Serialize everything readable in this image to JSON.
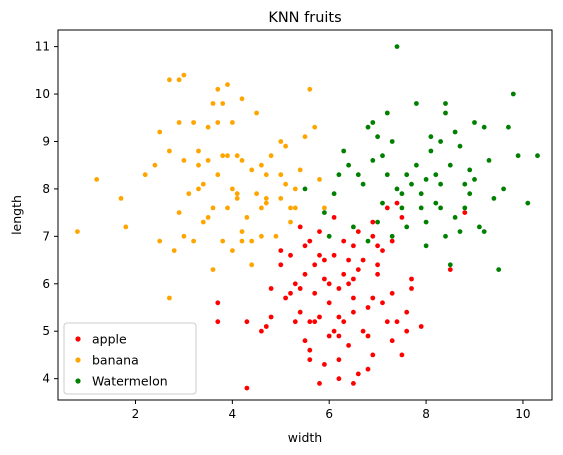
{
  "chart_data": {
    "type": "scatter",
    "title": "KNN fruits",
    "xlabel": "width",
    "ylabel": "length",
    "xlim": [
      0.4,
      10.6
    ],
    "ylim": [
      3.55,
      11.35
    ],
    "xticks": [
      2,
      4,
      6,
      8,
      10
    ],
    "yticks": [
      4,
      5,
      6,
      7,
      8,
      9,
      10,
      11
    ],
    "legend_position": "lower-left",
    "grid": false,
    "series": [
      {
        "name": "apple",
        "color": "#ff0000",
        "points": [
          [
            4.3,
            3.8
          ],
          [
            4.6,
            5.0
          ],
          [
            4.7,
            5.1
          ],
          [
            4.8,
            5.9
          ],
          [
            5.0,
            6.4
          ],
          [
            5.1,
            5.7
          ],
          [
            5.2,
            6.6
          ],
          [
            5.4,
            5.4
          ],
          [
            5.4,
            5.9
          ],
          [
            5.5,
            4.8
          ],
          [
            5.6,
            5.2
          ],
          [
            5.7,
            5.2
          ],
          [
            5.6,
            6.9
          ],
          [
            5.5,
            6.2
          ],
          [
            5.5,
            6.8
          ],
          [
            5.9,
            6.1
          ],
          [
            5.9,
            6.5
          ],
          [
            5.7,
            5.8
          ],
          [
            5.8,
            6.6
          ],
          [
            6.1,
            5.0
          ],
          [
            6.2,
            5.3
          ],
          [
            6.0,
            5.6
          ],
          [
            6.3,
            6.2
          ],
          [
            6.3,
            6.9
          ],
          [
            6.1,
            7.4
          ],
          [
            6.5,
            6.8
          ],
          [
            6.5,
            5.4
          ],
          [
            6.4,
            4.7
          ],
          [
            6.6,
            4.1
          ],
          [
            6.5,
            3.9
          ],
          [
            6.8,
            4.2
          ],
          [
            6.8,
            4.9
          ],
          [
            6.8,
            5.5
          ],
          [
            7.0,
            6.4
          ],
          [
            7.0,
            6.8
          ],
          [
            7.2,
            5.2
          ],
          [
            7.3,
            5.8
          ],
          [
            7.4,
            5.2
          ],
          [
            7.5,
            4.5
          ],
          [
            7.6,
            5.4
          ],
          [
            7.7,
            6.1
          ],
          [
            7.7,
            5.9
          ],
          [
            6.9,
            7.3
          ],
          [
            7.2,
            7.6
          ],
          [
            7.5,
            7.4
          ],
          [
            7.3,
            6.9
          ],
          [
            6.7,
            5.0
          ],
          [
            6.2,
            4.4
          ],
          [
            6.0,
            4.9
          ],
          [
            6.2,
            5.9
          ],
          [
            6.5,
            6.1
          ],
          [
            6.1,
            6.6
          ],
          [
            5.8,
            5.3
          ],
          [
            5.6,
            4.4
          ],
          [
            5.8,
            3.9
          ],
          [
            5.3,
            6.0
          ],
          [
            4.8,
            5.3
          ],
          [
            5.9,
            4.3
          ],
          [
            7.1,
            5.6
          ],
          [
            8.5,
            6.3
          ],
          [
            8.8,
            7.5
          ],
          [
            5.4,
            7.2
          ],
          [
            6.6,
            7.1
          ],
          [
            6.9,
            5.7
          ],
          [
            7.3,
            4.8
          ],
          [
            6.3,
            5.2
          ],
          [
            6.6,
            6.3
          ],
          [
            5.8,
            7.1
          ],
          [
            7.0,
            6.2
          ],
          [
            7.4,
            7.7
          ],
          [
            5.0,
            6.7
          ],
          [
            3.7,
            5.2
          ],
          [
            3.7,
            5.6
          ],
          [
            4.3,
            5.2
          ],
          [
            5.3,
            5.2
          ],
          [
            7.9,
            5.1
          ],
          [
            6.7,
            6.5
          ],
          [
            6.2,
            4.0
          ],
          [
            6.9,
            4.5
          ],
          [
            7.6,
            5.0
          ],
          [
            6.0,
            6.0
          ],
          [
            6.4,
            6.0
          ],
          [
            5.2,
            5.8
          ],
          [
            6.9,
            7.0
          ],
          [
            6.4,
            6.5
          ],
          [
            6.5,
            5.7
          ],
          [
            7.1,
            6.7
          ],
          [
            6.2,
            4.9
          ],
          [
            5.7,
            6.4
          ],
          [
            5.6,
            4.6
          ]
        ]
      },
      {
        "name": "banana",
        "color": "#ffa500",
        "points": [
          [
            0.8,
            7.1
          ],
          [
            1.2,
            8.2
          ],
          [
            1.7,
            7.8
          ],
          [
            1.8,
            7.2
          ],
          [
            2.2,
            8.3
          ],
          [
            2.4,
            8.5
          ],
          [
            2.5,
            6.9
          ],
          [
            2.7,
            5.7
          ],
          [
            2.7,
            10.3
          ],
          [
            2.9,
            10.3
          ],
          [
            3.0,
            10.4
          ],
          [
            2.9,
            9.4
          ],
          [
            3.2,
            9.4
          ],
          [
            3.3,
            8.8
          ],
          [
            3.5,
            9.3
          ],
          [
            3.6,
            9.8
          ],
          [
            3.7,
            10.1
          ],
          [
            3.8,
            9.8
          ],
          [
            3.9,
            10.2
          ],
          [
            4.0,
            9.4
          ],
          [
            4.2,
            9.9
          ],
          [
            2.8,
            6.7
          ],
          [
            3.0,
            7.0
          ],
          [
            3.1,
            7.9
          ],
          [
            3.3,
            8.5
          ],
          [
            3.5,
            7.4
          ],
          [
            3.6,
            7.6
          ],
          [
            3.7,
            8.3
          ],
          [
            3.9,
            8.7
          ],
          [
            4.0,
            8.0
          ],
          [
            4.1,
            7.8
          ],
          [
            4.2,
            7.1
          ],
          [
            4.4,
            8.4
          ],
          [
            4.5,
            7.9
          ],
          [
            4.6,
            7.6
          ],
          [
            4.7,
            8.3
          ],
          [
            4.8,
            8.7
          ],
          [
            5.0,
            8.3
          ],
          [
            5.0,
            7.8
          ],
          [
            5.1,
            8.9
          ],
          [
            5.2,
            7.3
          ],
          [
            5.3,
            7.6
          ],
          [
            5.4,
            8.4
          ],
          [
            5.5,
            9.1
          ],
          [
            5.7,
            9.3
          ],
          [
            5.6,
            10.1
          ],
          [
            5.8,
            8.2
          ],
          [
            5.9,
            7.6
          ],
          [
            3.4,
            7.3
          ],
          [
            3.6,
            6.3
          ],
          [
            3.8,
            6.9
          ],
          [
            4.0,
            6.7
          ],
          [
            4.2,
            6.9
          ],
          [
            4.4,
            6.4
          ],
          [
            4.6,
            7.0
          ],
          [
            3.8,
            8.7
          ],
          [
            4.2,
            8.6
          ],
          [
            4.9,
            7.0
          ],
          [
            3.2,
            6.9
          ],
          [
            3.4,
            8.1
          ],
          [
            4.3,
            7.4
          ],
          [
            4.7,
            7.8
          ],
          [
            5.0,
            9.0
          ],
          [
            2.5,
            9.2
          ],
          [
            2.7,
            8.8
          ],
          [
            3.5,
            8.6
          ],
          [
            3.9,
            7.6
          ],
          [
            4.6,
            8.5
          ],
          [
            5.3,
            8.0
          ],
          [
            4.5,
            9.6
          ],
          [
            3.7,
            9.4
          ],
          [
            4.1,
            8.7
          ],
          [
            4.1,
            7.9
          ],
          [
            3.3,
            8.0
          ],
          [
            3.0,
            8.6
          ],
          [
            2.9,
            7.5
          ],
          [
            4.4,
            6.9
          ],
          [
            4.7,
            7.7
          ],
          [
            5.1,
            8.1
          ],
          [
            5.2,
            7.6
          ]
        ]
      },
      {
        "name": "Watermelon",
        "color": "#008000",
        "points": [
          [
            5.5,
            8.0
          ],
          [
            5.9,
            7.5
          ],
          [
            6.0,
            7.0
          ],
          [
            6.2,
            8.3
          ],
          [
            6.3,
            8.8
          ],
          [
            6.5,
            7.2
          ],
          [
            6.6,
            8.3
          ],
          [
            6.8,
            9.3
          ],
          [
            6.9,
            8.6
          ],
          [
            7.0,
            9.1
          ],
          [
            7.1,
            7.7
          ],
          [
            7.2,
            8.3
          ],
          [
            7.3,
            9.0
          ],
          [
            7.4,
            11.0
          ],
          [
            7.5,
            7.9
          ],
          [
            7.6,
            8.3
          ],
          [
            7.7,
            8.1
          ],
          [
            7.8,
            8.5
          ],
          [
            7.9,
            7.6
          ],
          [
            8.0,
            8.2
          ],
          [
            8.1,
            8.8
          ],
          [
            8.2,
            7.7
          ],
          [
            8.3,
            8.1
          ],
          [
            8.3,
            9.0
          ],
          [
            8.4,
            9.6
          ],
          [
            8.5,
            8.5
          ],
          [
            8.6,
            7.4
          ],
          [
            8.7,
            8.9
          ],
          [
            8.8,
            8.1
          ],
          [
            8.9,
            7.9
          ],
          [
            9.1,
            7.2
          ],
          [
            9.2,
            9.3
          ],
          [
            9.3,
            8.6
          ],
          [
            9.4,
            7.8
          ],
          [
            9.5,
            6.3
          ],
          [
            9.6,
            8.0
          ],
          [
            9.7,
            9.3
          ],
          [
            9.8,
            10.0
          ],
          [
            9.9,
            8.7
          ],
          [
            10.1,
            7.7
          ],
          [
            10.3,
            8.7
          ],
          [
            7.0,
            7.3
          ],
          [
            6.8,
            6.9
          ],
          [
            7.3,
            7.0
          ],
          [
            7.6,
            7.2
          ],
          [
            8.0,
            6.8
          ],
          [
            8.5,
            6.4
          ],
          [
            8.4,
            7.0
          ],
          [
            8.7,
            7.1
          ],
          [
            9.2,
            7.1
          ],
          [
            7.8,
            9.8
          ],
          [
            8.4,
            9.8
          ],
          [
            6.9,
            9.4
          ],
          [
            6.4,
            8.5
          ],
          [
            7.2,
            9.6
          ],
          [
            8.6,
            9.2
          ],
          [
            8.9,
            8.4
          ],
          [
            9.0,
            8.2
          ],
          [
            7.5,
            7.6
          ],
          [
            7.9,
            7.9
          ],
          [
            8.2,
            8.3
          ],
          [
            8.8,
            7.6
          ],
          [
            6.1,
            7.9
          ],
          [
            6.7,
            8.1
          ],
          [
            7.1,
            8.7
          ],
          [
            7.4,
            8.0
          ],
          [
            8.0,
            7.3
          ],
          [
            8.3,
            7.6
          ],
          [
            9.0,
            9.4
          ],
          [
            8.1,
            9.1
          ]
        ]
      }
    ]
  }
}
